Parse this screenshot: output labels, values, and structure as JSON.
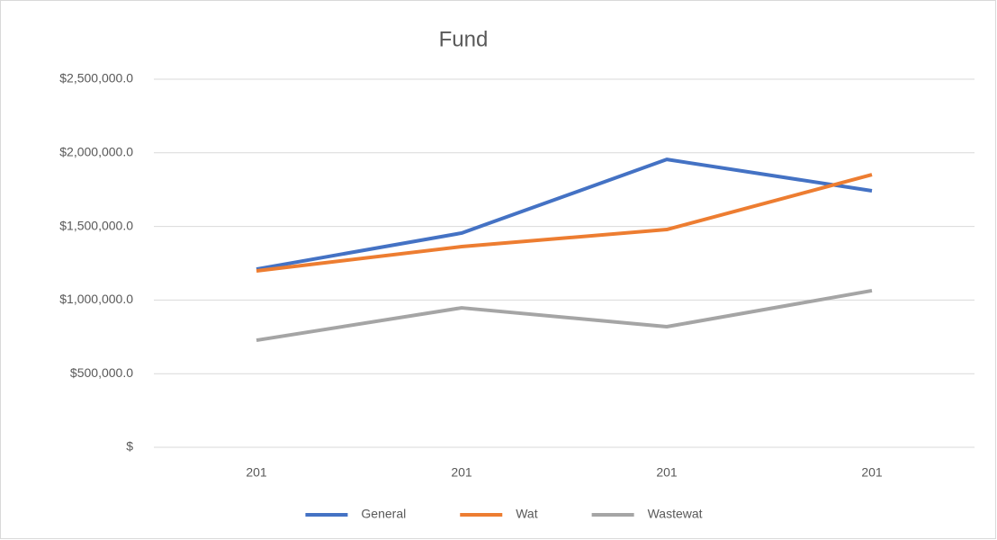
{
  "chart_data": {
    "type": "line",
    "title": "Fund",
    "categories": [
      "201",
      "201",
      "201",
      "201"
    ],
    "series": [
      {
        "name": "General",
        "color": "#4472c4",
        "values": [
          1210000,
          1455000,
          1955000,
          1742000
        ]
      },
      {
        "name": "Wat",
        "color": "#ed7d31",
        "values": [
          1198000,
          1363000,
          1479000,
          1852000
        ]
      },
      {
        "name": "Wastewat",
        "color": "#a5a5a5",
        "values": [
          727000,
          947000,
          819000,
          1064000
        ]
      }
    ],
    "ylim": [
      0,
      2500000
    ],
    "yticks": [
      {
        "value": 0,
        "label": "$"
      },
      {
        "value": 500000,
        "label": "$500,000.0"
      },
      {
        "value": 1000000,
        "label": "$1,000,000.0"
      },
      {
        "value": 1500000,
        "label": "$1,500,000.0"
      },
      {
        "value": 2000000,
        "label": "$2,000,000.0"
      },
      {
        "value": 2500000,
        "label": "$2,500,000.0"
      }
    ],
    "grid": true,
    "legend": "bottom"
  }
}
